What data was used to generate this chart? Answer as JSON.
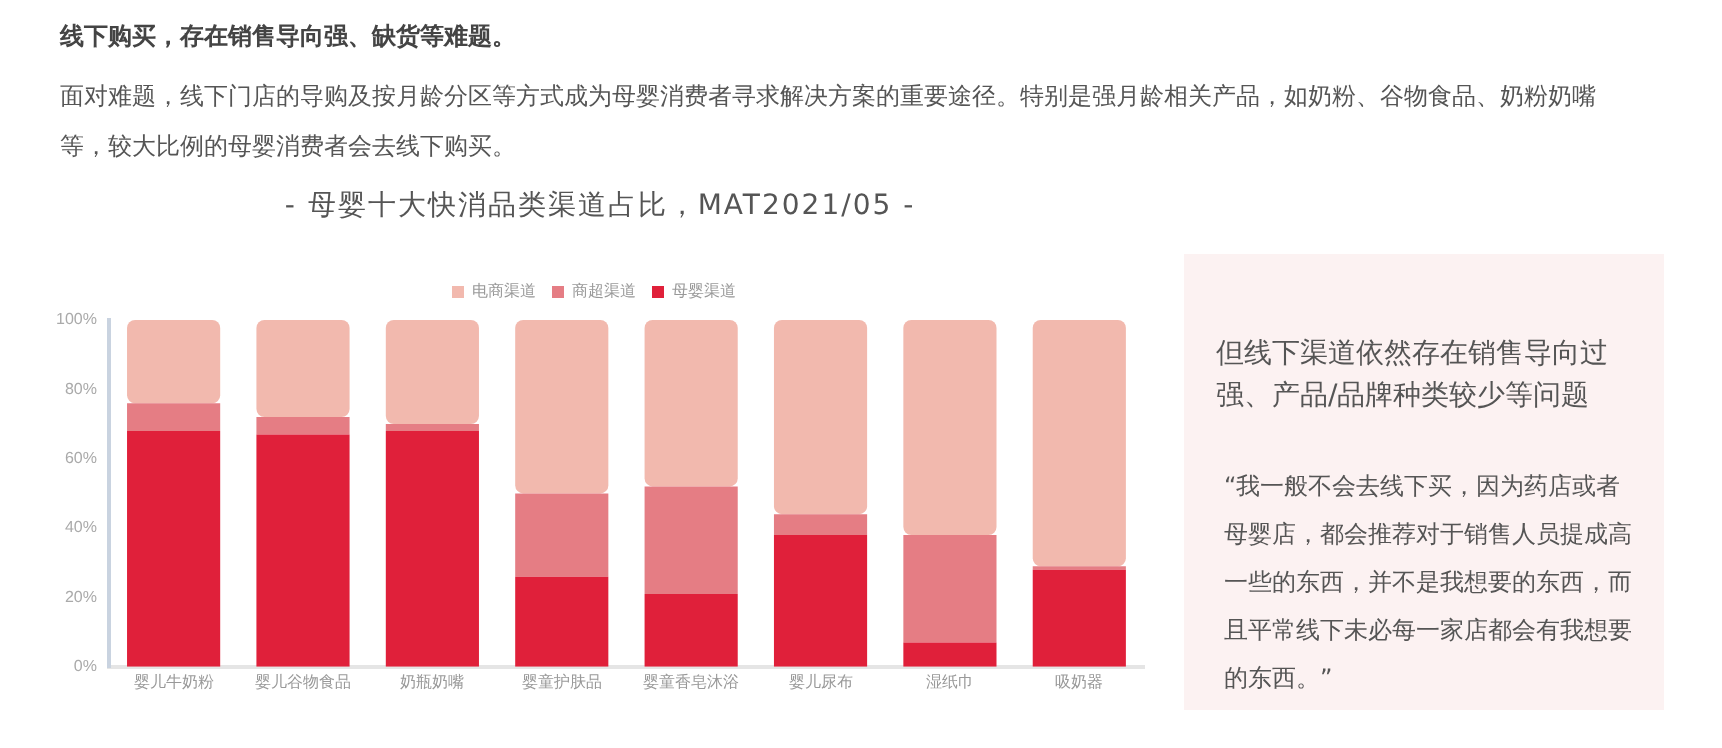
{
  "chart_data": {
    "type": "bar",
    "stacked": true,
    "title": "- 母婴十大快消品类渠道占比，MAT2021/05 -",
    "annotations": [
      "线下购买，存在销售导向强、缺货等难题。",
      "面对难题，线下门店的导购及按月龄分区等方式成为母婴消费者寻求解决方案的重要途径。特别是强月龄相关产品，如奶粉、谷物食品、奶粉奶嘴等，较大比例的母婴消费者会去线下购买。",
      "但线下渠道依然存在销售导向过强、产品/品牌种类较少等问题",
      "“我一般不会去线下买，因为药店或者母婴店，都会推荐对于销售人员提成高一些的东西，并不是我想要的东西，而且平常线下未必每一家店都会有我想要的东西。”"
    ],
    "categories": [
      "婴儿牛奶粉",
      "婴儿谷物食品",
      "奶瓶奶嘴",
      "婴童护肤品",
      "婴童香皂沐浴",
      "婴儿尿布",
      "湿纸巾",
      "吸奶器"
    ],
    "series": [
      {
        "name": "母婴渠道",
        "color": "#e0203a",
        "values": [
          68,
          67,
          68,
          26,
          21,
          38,
          7,
          28
        ]
      },
      {
        "name": "商超渠道",
        "color": "#e57d84",
        "values": [
          8,
          5,
          2,
          24,
          31,
          6,
          31,
          1
        ]
      },
      {
        "name": "电商渠道",
        "color": "#f2b9ae",
        "values": [
          24,
          28,
          30,
          50,
          48,
          56,
          62,
          71
        ]
      }
    ],
    "ylim": [
      0,
      100
    ],
    "yticks": [
      {
        "value": 0,
        "label": "0%"
      },
      {
        "value": 20,
        "label": "20%"
      },
      {
        "value": 40,
        "label": "40%"
      },
      {
        "value": 60,
        "label": "60%"
      },
      {
        "value": 80,
        "label": "80%"
      },
      {
        "value": 100,
        "label": "100%"
      }
    ],
    "grid": false,
    "legend": "top"
  }
}
